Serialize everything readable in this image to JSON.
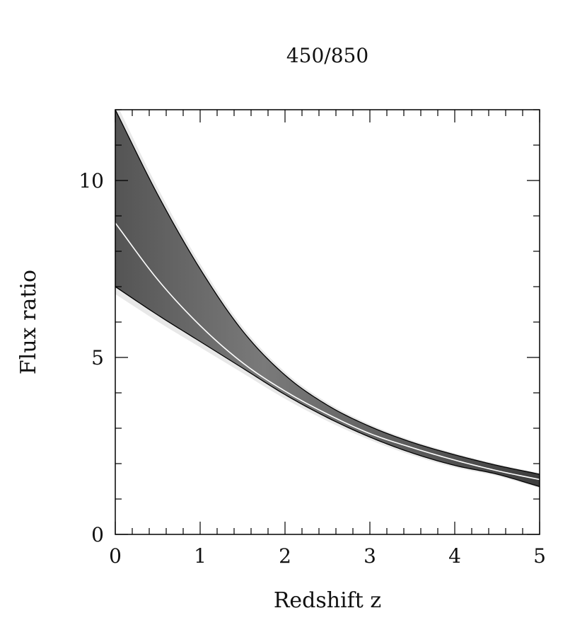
{
  "chart_data": {
    "type": "line",
    "title": "450/850",
    "xlabel": "Redshift z",
    "ylabel": "Flux ratio",
    "xlim": [
      0,
      5
    ],
    "ylim": [
      0,
      12
    ],
    "x_ticks": [
      "0",
      "1",
      "2",
      "3",
      "4",
      "5"
    ],
    "y_ticks": [
      "0",
      "5",
      "10"
    ],
    "grid": false,
    "shaded_band": "grayscale density of model curves between the upper and lower bounds",
    "x": [
      0,
      0.5,
      1,
      1.5,
      2,
      2.5,
      3,
      3.5,
      4,
      4.5,
      5
    ],
    "series": [
      {
        "name": "",
        "color": "#000000",
        "values": [
          12.0,
          9.6,
          7.5,
          5.75,
          4.5,
          3.65,
          3.05,
          2.6,
          2.25,
          1.95,
          1.7
        ]
      },
      {
        "name": "",
        "color": "#ffffff",
        "values": [
          8.8,
          7.2,
          5.9,
          4.85,
          4.05,
          3.4,
          2.85,
          2.45,
          2.1,
          1.8,
          1.55
        ]
      },
      {
        "name": "",
        "color": "#000000",
        "values": [
          7.0,
          6.2,
          5.45,
          4.7,
          3.95,
          3.3,
          2.75,
          2.3,
          1.95,
          1.7,
          1.35
        ]
      }
    ]
  }
}
